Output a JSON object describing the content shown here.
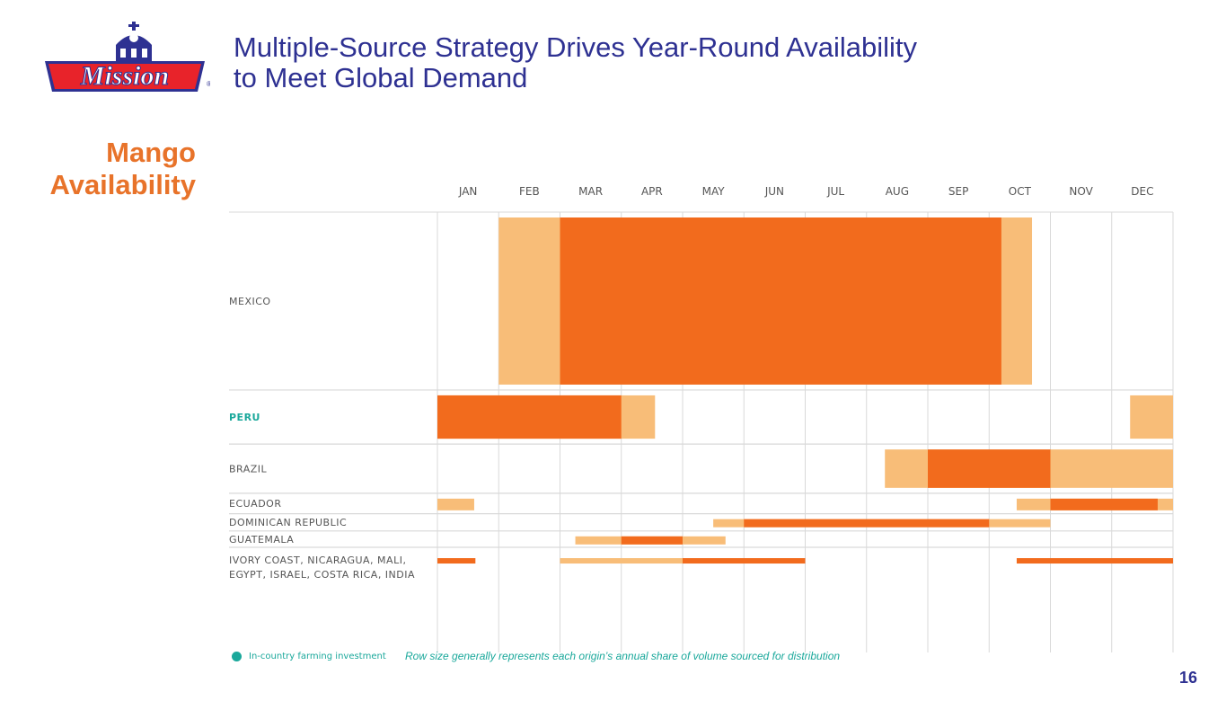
{
  "logo": {
    "text": "Mission"
  },
  "header": {
    "title_line1": "Multiple-Source Strategy Drives Year-Round Availability",
    "title_line2": "to Meet Global Demand"
  },
  "section": {
    "line1": "Mango",
    "line2": "Availability"
  },
  "chart_data": {
    "type": "bar",
    "months": [
      "JAN",
      "FEB",
      "MAR",
      "APR",
      "MAY",
      "JUN",
      "JUL",
      "AUG",
      "SEP",
      "OCT",
      "NOV",
      "DEC"
    ],
    "rows": [
      {
        "name": [
          "MEXICO"
        ],
        "highlight": false,
        "weight": 217,
        "bars": [
          {
            "start": 1.0,
            "end": 9.7,
            "level": "light"
          },
          {
            "start": 2.0,
            "end": 9.2,
            "level": "peak"
          }
        ]
      },
      {
        "name": [
          "PERU"
        ],
        "highlight": true,
        "weight": 66,
        "bars": [
          {
            "start": 0.0,
            "end": 3.55,
            "level": "light"
          },
          {
            "start": 0.0,
            "end": 3.0,
            "level": "peak"
          },
          {
            "start": 11.3,
            "end": 12.0,
            "level": "light"
          }
        ]
      },
      {
        "name": [
          "BRAZIL"
        ],
        "highlight": false,
        "weight": 60,
        "bars": [
          {
            "start": 7.3,
            "end": 12.0,
            "level": "light"
          },
          {
            "start": 8.0,
            "end": 10.0,
            "level": "peak"
          }
        ]
      },
      {
        "name": [
          "ECUADOR"
        ],
        "highlight": false,
        "weight": 25,
        "bars": [
          {
            "start": 0.0,
            "end": 0.6,
            "level": "light"
          },
          {
            "start": 9.45,
            "end": 12.0,
            "level": "light"
          },
          {
            "start": 10.0,
            "end": 11.75,
            "level": "peak"
          }
        ]
      },
      {
        "name": [
          "DOMINICAN REPUBLIC"
        ],
        "highlight": false,
        "weight": 21,
        "bars": [
          {
            "start": 4.5,
            "end": 10.0,
            "level": "light"
          },
          {
            "start": 5.0,
            "end": 9.0,
            "level": "peak"
          }
        ]
      },
      {
        "name": [
          "GUATEMALA"
        ],
        "highlight": false,
        "weight": 20,
        "bars": [
          {
            "start": 2.25,
            "end": 4.7,
            "level": "light"
          },
          {
            "start": 3.0,
            "end": 4.0,
            "level": "peak"
          }
        ]
      },
      {
        "name": [
          "IVORY COAST, NICARAGUA, MALI,",
          "EGYPT, ISRAEL, COSTA RICA, INDIA"
        ],
        "highlight": false,
        "weight": 80,
        "bars": [
          {
            "start": 0.0,
            "end": 0.62,
            "level": "peak"
          },
          {
            "start": 2.0,
            "end": 4.0,
            "level": "light"
          },
          {
            "start": 4.0,
            "end": 6.0,
            "level": "peak"
          },
          {
            "start": 9.45,
            "end": 12.0,
            "level": "peak"
          }
        ]
      }
    ],
    "colors": {
      "peak": "#f26b1d",
      "light": "#f8bd78",
      "label": "#555555",
      "highlight": "#1aa89b",
      "grid": "#d9d9d9",
      "month": "#555555"
    }
  },
  "legend": {
    "label": "In-country farming investment",
    "color": "#1aa89b"
  },
  "note": "Row size generally represents each origin’s annual share of volume sourced for distribution",
  "page_number": "16"
}
